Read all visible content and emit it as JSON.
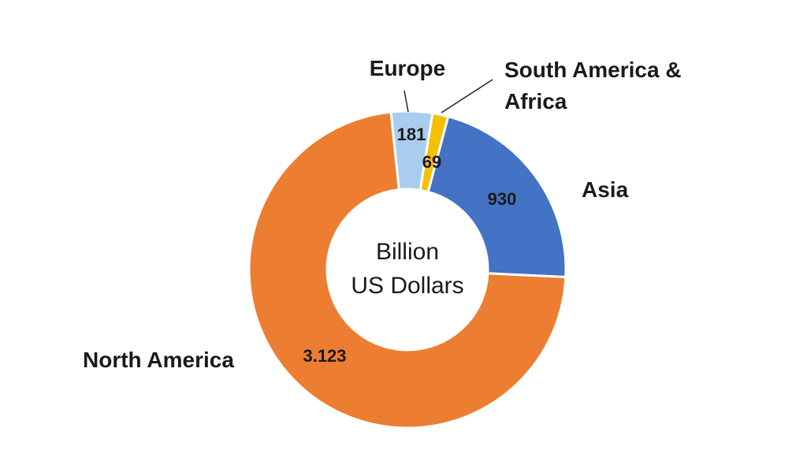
{
  "chart_data": {
    "type": "pie",
    "variant": "donut",
    "center_label": [
      "Billion",
      "US Dollars"
    ],
    "slices": [
      {
        "name": "Europe",
        "value_label": "181",
        "value": 181,
        "color": "#a9cdee"
      },
      {
        "name": "South America &\nAfrica",
        "value_label": "69",
        "value": 69,
        "color": "#f5c000"
      },
      {
        "name": "Asia",
        "value_label": "930",
        "value": 930,
        "color": "#4472c4"
      },
      {
        "name": "North America",
        "value_label": "3.123",
        "value": 3123,
        "color": "#ed7d31"
      }
    ]
  }
}
